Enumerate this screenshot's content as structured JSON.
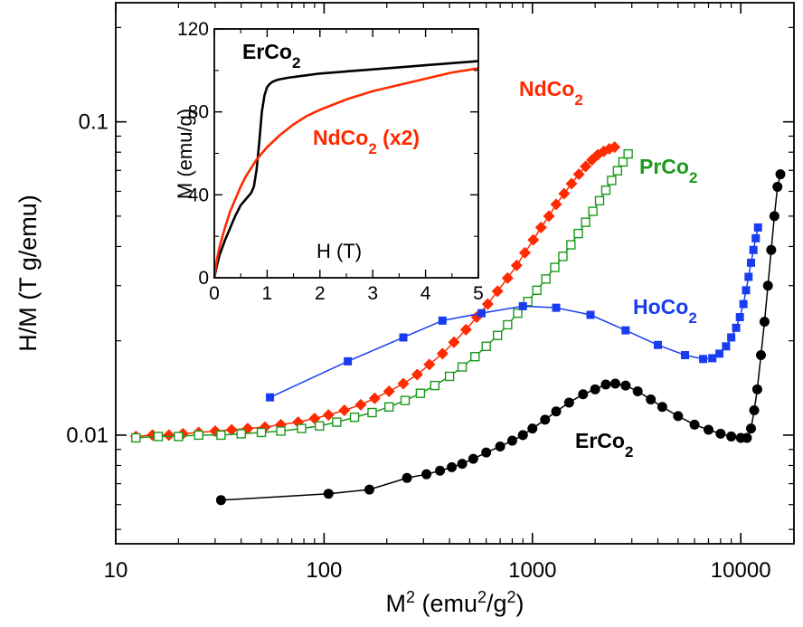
{
  "chart_data": [
    {
      "type": "scatter",
      "xlabel": "M",
      "xlabel_sup": "2",
      "xlabel_rest": " (emu",
      "xlabel_sup2": "2",
      "xlabel_mid": "/g",
      "xlabel_sup3": "2",
      "xlabel_end": ")",
      "ylabel": "H/M (T g/emu)",
      "xscale": "log",
      "yscale": "log",
      "xlim": [
        10,
        18000
      ],
      "ylim": [
        0.0045,
        0.24
      ],
      "xticks": [
        10,
        100,
        1000,
        10000
      ],
      "xtick_labels": [
        "10",
        "100",
        "1000",
        "10000"
      ],
      "yticks": [
        0.01,
        0.1
      ],
      "ytick_labels": [
        "0.01",
        "0.1"
      ],
      "series": [
        {
          "name": "ErCo",
          "name_sub": "2",
          "color": "#000000",
          "marker": "circle",
          "x": [
            32,
            105,
            165,
            250,
            310,
            360,
            410,
            460,
            520,
            600,
            700,
            800,
            900,
            1000,
            1150,
            1300,
            1500,
            1750,
            2000,
            2250,
            2500,
            2800,
            3200,
            3700,
            4200,
            5000,
            6000,
            7000,
            8000,
            9000,
            10000,
            10700,
            11200,
            11600,
            12000,
            12500,
            13000,
            13500,
            14000,
            14500,
            15000,
            15500
          ],
          "y": [
            0.0062,
            0.0065,
            0.0067,
            0.0073,
            0.0075,
            0.0077,
            0.0079,
            0.0081,
            0.0084,
            0.0088,
            0.0092,
            0.0096,
            0.01,
            0.0105,
            0.0112,
            0.0119,
            0.0127,
            0.0135,
            0.014,
            0.0145,
            0.0146,
            0.0144,
            0.0138,
            0.013,
            0.0123,
            0.0115,
            0.0108,
            0.0104,
            0.0101,
            0.0099,
            0.0098,
            0.0098,
            0.0105,
            0.012,
            0.014,
            0.018,
            0.023,
            0.03,
            0.039,
            0.05,
            0.062,
            0.068
          ]
        },
        {
          "name": "NdCo",
          "name_sub": "2",
          "color": "#ff2a00",
          "marker": "diamond",
          "x": [
            12.5,
            15,
            18,
            21,
            25,
            30,
            36,
            43,
            52,
            62,
            75,
            90,
            105,
            125,
            150,
            175,
            205,
            240,
            280,
            320,
            370,
            420,
            480,
            540,
            610,
            680,
            760,
            840,
            920,
            1010,
            1100,
            1200,
            1300,
            1420,
            1540,
            1670,
            1800,
            1930,
            2060,
            2200,
            2340,
            2480
          ],
          "y": [
            0.0099,
            0.01,
            0.01,
            0.0101,
            0.0102,
            0.0103,
            0.0104,
            0.0105,
            0.0106,
            0.0108,
            0.011,
            0.0113,
            0.0116,
            0.012,
            0.0125,
            0.0131,
            0.0138,
            0.0146,
            0.0156,
            0.0168,
            0.0182,
            0.0198,
            0.0217,
            0.0238,
            0.0262,
            0.0288,
            0.0317,
            0.0348,
            0.0382,
            0.042,
            0.046,
            0.05,
            0.0545,
            0.059,
            0.0635,
            0.068,
            0.072,
            0.0755,
            0.0785,
            0.0805,
            0.082,
            0.083
          ]
        },
        {
          "name": "PrCo",
          "name_sub": "2",
          "color": "#1a9a1a",
          "marker": "open-square",
          "x": [
            12.5,
            16,
            20,
            25,
            32,
            40,
            50,
            62,
            78,
            95,
            115,
            140,
            170,
            205,
            245,
            290,
            340,
            400,
            460,
            530,
            600,
            680,
            760,
            850,
            950,
            1050,
            1160,
            1280,
            1400,
            1530,
            1660,
            1800,
            1950,
            2100,
            2250,
            2400,
            2560,
            2720,
            2880
          ],
          "y": [
            0.0098,
            0.0099,
            0.0099,
            0.01,
            0.01,
            0.0101,
            0.0102,
            0.0103,
            0.0105,
            0.0107,
            0.011,
            0.0114,
            0.0118,
            0.0123,
            0.0129,
            0.0136,
            0.0144,
            0.0154,
            0.0165,
            0.0178,
            0.0192,
            0.0208,
            0.0225,
            0.0245,
            0.0267,
            0.029,
            0.0315,
            0.0343,
            0.0372,
            0.0405,
            0.044,
            0.0478,
            0.0518,
            0.056,
            0.0605,
            0.065,
            0.0698,
            0.0745,
            0.079
          ]
        },
        {
          "name": "HoCo",
          "name_sub": "2",
          "color": "#1a3cf0",
          "marker": "square",
          "x": [
            55,
            130,
            240,
            370,
            570,
            900,
            1300,
            1900,
            2800,
            4000,
            5400,
            6600,
            7300,
            7900,
            8500,
            9000,
            9500,
            9900,
            10300,
            10600,
            10900,
            11200,
            11500,
            11800,
            12100
          ],
          "y": [
            0.0132,
            0.0172,
            0.0205,
            0.0232,
            0.0245,
            0.0258,
            0.0255,
            0.0242,
            0.0216,
            0.0194,
            0.018,
            0.0175,
            0.0176,
            0.0182,
            0.0192,
            0.0205,
            0.022,
            0.0238,
            0.0262,
            0.029,
            0.032,
            0.0355,
            0.039,
            0.0425,
            0.046
          ]
        }
      ]
    },
    {
      "type": "line",
      "xlabel": "H (T)",
      "ylabel": "M (emu/g)",
      "xlim": [
        0,
        5
      ],
      "ylim": [
        0,
        120
      ],
      "xticks": [
        0,
        1,
        2,
        3,
        4,
        5
      ],
      "xtick_labels": [
        "0",
        "1",
        "2",
        "3",
        "4",
        "5"
      ],
      "yticks": [
        0,
        40,
        80,
        120
      ],
      "ytick_labels": [
        "0",
        "40",
        "80",
        "120"
      ],
      "series": [
        {
          "name": "ErCo",
          "name_sub": "2",
          "color": "#000000",
          "x": [
            0,
            0.05,
            0.1,
            0.2,
            0.3,
            0.4,
            0.5,
            0.6,
            0.7,
            0.75,
            0.8,
            0.85,
            0.9,
            0.95,
            1.0,
            1.05,
            1.1,
            1.2,
            1.4,
            1.7,
            2.0,
            2.5,
            3.0,
            3.5,
            4.0,
            4.5,
            5.0
          ],
          "y": [
            0,
            6,
            11,
            18,
            24,
            30,
            35,
            38,
            41,
            44,
            52,
            65,
            80,
            88,
            92,
            93.5,
            94.5,
            95.5,
            96.5,
            97.5,
            98.5,
            99.5,
            100.5,
            101.5,
            102.5,
            103.5,
            104.5
          ]
        },
        {
          "name": "NdCo",
          "name_sub": "2",
          "name_suffix": " (x2)",
          "color": "#ff2a00",
          "x": [
            0,
            0.05,
            0.1,
            0.2,
            0.3,
            0.4,
            0.5,
            0.6,
            0.8,
            1.0,
            1.25,
            1.5,
            1.75,
            2.0,
            2.5,
            3.0,
            3.5,
            4.0,
            4.5,
            5.0
          ],
          "y": [
            0,
            9,
            15,
            24,
            32,
            38,
            44,
            49,
            57,
            63,
            69,
            74,
            78,
            81,
            86,
            90,
            93,
            96,
            99,
            101
          ]
        }
      ]
    }
  ]
}
